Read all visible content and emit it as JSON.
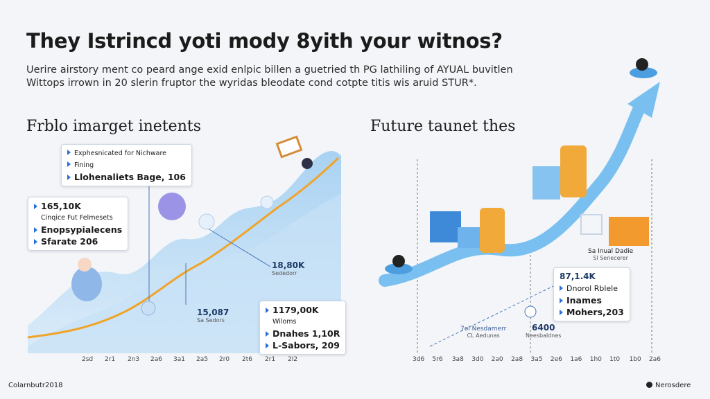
{
  "header": {
    "title": "They Istrincd yoti mody 8yith your witnos?",
    "subtitle": [
      "Uerire airstory ment co peard ange exid enlpic billen a guetried th PG lathiling of AYUAL buvitlen",
      "Wittops irrown in 20 slerin fruptor the wyridas bleodate cond cotpte titis wis aruid STUR*."
    ]
  },
  "left_panel": {
    "heading": "Frblo imarget inetents",
    "callouts": [
      {
        "lines": [
          "Exphesnicated for Nichware",
          "Fining",
          "Llohenaliets Bage, 106"
        ]
      },
      {
        "lines": [
          "165,10K",
          "Cinqice Fut Felmesets",
          "Enopsypialecens",
          "Sfarate 206"
        ]
      },
      {
        "lines": [
          "18,80K",
          "Sededorr"
        ]
      },
      {
        "lines": [
          "15,087",
          "Sa Sedors"
        ]
      },
      {
        "lines": [
          "1179,00K",
          "Wiloms",
          "Dnahes 1,10R",
          "L-Sabors, 209"
        ]
      }
    ],
    "x_labels": [
      "2sd",
      "2r1",
      "2n3",
      "2a6",
      "3a1",
      "2a5",
      "2r0",
      "2t6",
      "2r1",
      "2I2"
    ]
  },
  "right_panel": {
    "heading": "Future taunet thes",
    "callouts": [
      {
        "lines": [
          "Sa Inual Dadie",
          "Sl Senecerer"
        ]
      },
      {
        "lines": [
          "87,1.4K",
          "Dnorol Rblele",
          "Inames",
          "Mohers,203"
        ]
      },
      {
        "lines": [
          "7ol Nesdamerr",
          "CL Aedunas"
        ]
      },
      {
        "lines": [
          "6400",
          "Neesbaldnes"
        ]
      }
    ],
    "x_labels": [
      "3d6",
      "5r6",
      "3a8",
      "3d0",
      "2a0",
      "2a8",
      "3a5",
      "2e6",
      "1a6",
      "1h0",
      "1t0",
      "1b0",
      "2a6"
    ]
  },
  "footer": {
    "left": "Colarnbutr2018",
    "right": "Nerosdere"
  }
}
